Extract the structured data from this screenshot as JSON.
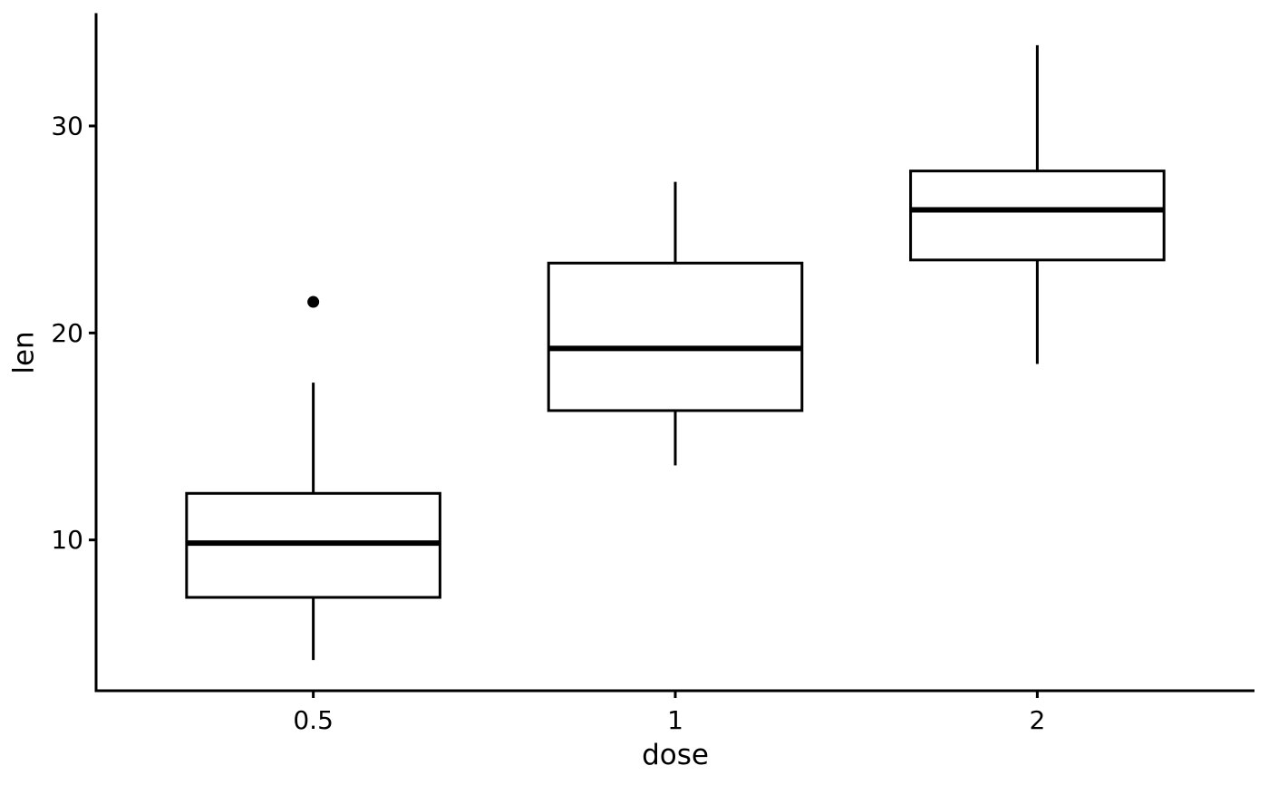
{
  "chart_data": {
    "type": "boxplot",
    "title": "",
    "xlabel": "dose",
    "ylabel": "len",
    "categories": [
      "0.5",
      "1",
      "2"
    ],
    "y_ticks": [
      10,
      20,
      30
    ],
    "ylim": [
      2.715,
      35.385
    ],
    "grid": "off",
    "legend": "none",
    "boxes": [
      {
        "category": "0.5",
        "lower_whisker": 4.2,
        "q1": 7.225,
        "median": 9.85,
        "q3": 12.25,
        "upper_whisker": 17.6,
        "outliers": [
          21.5
        ]
      },
      {
        "category": "1",
        "lower_whisker": 13.6,
        "q1": 16.25,
        "median": 19.25,
        "q3": 23.375,
        "upper_whisker": 27.3,
        "outliers": []
      },
      {
        "category": "2",
        "lower_whisker": 18.5,
        "q1": 23.525,
        "median": 25.95,
        "q3": 27.825,
        "upper_whisker": 33.9,
        "outliers": []
      }
    ],
    "colors": {
      "stroke": "#000000",
      "box_fill": "#ffffff",
      "background": "#ffffff",
      "text": "#000000"
    }
  }
}
